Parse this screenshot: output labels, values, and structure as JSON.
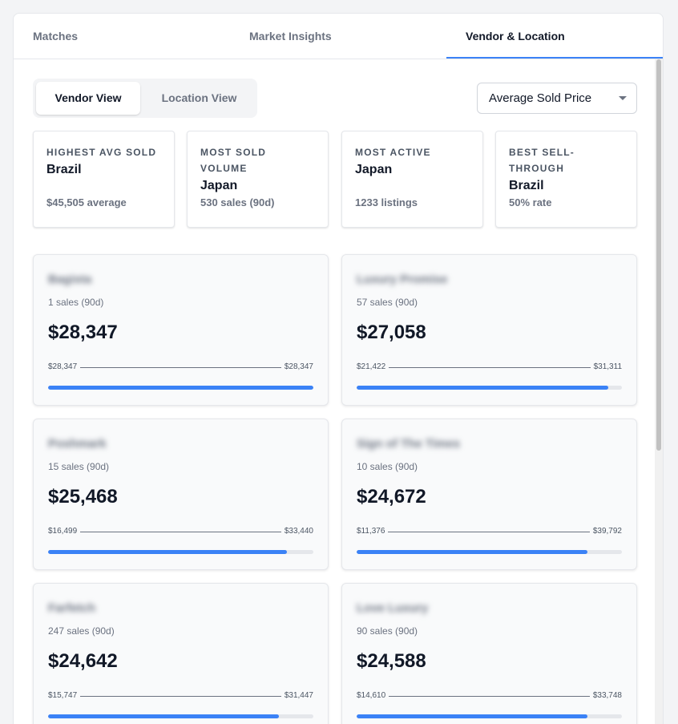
{
  "tabs": [
    {
      "label": "Matches",
      "active": false
    },
    {
      "label": "Market Insights",
      "active": false
    },
    {
      "label": "Vendor & Location",
      "active": true
    }
  ],
  "view_toggle": {
    "vendor_label": "Vendor View",
    "location_label": "Location View",
    "active": "Vendor View"
  },
  "sort_select": {
    "value": "Average Sold Price"
  },
  "stats": [
    {
      "label": "HIGHEST AVG SOLD",
      "value": "Brazil",
      "sub": "$45,505 average"
    },
    {
      "label": "MOST SOLD VOLUME",
      "value": "Japan",
      "sub": "530 sales (90d)"
    },
    {
      "label": "MOST ACTIVE",
      "value": "Japan",
      "sub": "1233 listings"
    },
    {
      "label": "BEST SELL-THROUGH",
      "value": "Brazil",
      "sub": "50% rate"
    }
  ],
  "vendors": [
    {
      "name": "Bagista",
      "sales": "1 sales (90d)",
      "price": "$28,347",
      "min": "$28,347",
      "max": "$28,347",
      "bar_fraction": 1.0
    },
    {
      "name": "Luxury Promise",
      "sales": "57 sales (90d)",
      "price": "$27,058",
      "min": "$21,422",
      "max": "$31,311",
      "bar_fraction": 0.95
    },
    {
      "name": "Poshmark",
      "sales": "15 sales (90d)",
      "price": "$25,468",
      "min": "$16,499",
      "max": "$33,440",
      "bar_fraction": 0.9
    },
    {
      "name": "Sign of The Times",
      "sales": "10 sales (90d)",
      "price": "$24,672",
      "min": "$11,376",
      "max": "$39,792",
      "bar_fraction": 0.87
    },
    {
      "name": "Farfetch",
      "sales": "247 sales (90d)",
      "price": "$24,642",
      "min": "$15,747",
      "max": "$31,447",
      "bar_fraction": 0.87
    },
    {
      "name": "Love Luxury",
      "sales": "90 sales (90d)",
      "price": "$24,588",
      "min": "$14,610",
      "max": "$33,748",
      "bar_fraction": 0.87
    }
  ],
  "colors": {
    "accent": "#3b82f6",
    "text": "#111827",
    "muted": "#6b7280"
  }
}
